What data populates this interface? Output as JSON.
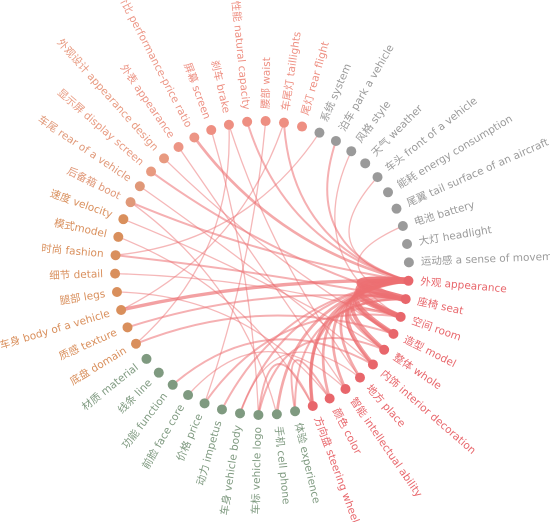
{
  "chart_data": {
    "type": "network",
    "nodes": [
      {
        "label": "外观 appearance",
        "color": "#e8666b"
      },
      {
        "label": "座椅 seat",
        "color": "#e8666b"
      },
      {
        "label": "空间 room",
        "color": "#e8666b"
      },
      {
        "label": "造型 model",
        "color": "#e8666b"
      },
      {
        "label": "整体 whole",
        "color": "#e8666b"
      },
      {
        "label": "内饰 interior decoration",
        "color": "#e8666b"
      },
      {
        "label": "地方 place",
        "color": "#e8666b"
      },
      {
        "label": "智能 intellectual ability",
        "color": "#e8666b"
      },
      {
        "label": "颜色 color",
        "color": "#e8666b"
      },
      {
        "label": "方向盘 steering wheel",
        "color": "#e8666b"
      },
      {
        "label": "体验 experience",
        "color": "#7f9a80"
      },
      {
        "label": "手机 cell phone",
        "color": "#7f9a80"
      },
      {
        "label": "车标 vehicle logo",
        "color": "#7f9a80"
      },
      {
        "label": "车身 vehicle body",
        "color": "#7f9a80"
      },
      {
        "label": "动力 impetus",
        "color": "#7f9a80"
      },
      {
        "label": "价格 price",
        "color": "#7f9a80"
      },
      {
        "label": "前脸 face core",
        "color": "#7f9a80"
      },
      {
        "label": "功能 function",
        "color": "#7f9a80"
      },
      {
        "label": "线条 line",
        "color": "#7f9a80"
      },
      {
        "label": "材质 material",
        "color": "#7f9a80"
      },
      {
        "label": "底盘 domain",
        "color": "#d98f5c"
      },
      {
        "label": "质感 texture",
        "color": "#d98f5c"
      },
      {
        "label": "车身 body of a vehicle",
        "color": "#d98f5c"
      },
      {
        "label": "腿部 legs",
        "color": "#d98f5c"
      },
      {
        "label": "细节 detail",
        "color": "#d98f5c"
      },
      {
        "label": "时尚 fashion",
        "color": "#d98f5c"
      },
      {
        "label": "模式model",
        "color": "#d98f5c"
      },
      {
        "label": "速度 velocity",
        "color": "#d98f5c"
      },
      {
        "label": "后备箱 boot",
        "color": "#e09878"
      },
      {
        "label": "车尾 rear of a vehicle",
        "color": "#e09878"
      },
      {
        "label": "显示屏 display screen",
        "color": "#e89a80"
      },
      {
        "label": "外观设计 appearance design",
        "color": "#e89a80"
      },
      {
        "label": "外表 appearance",
        "color": "#ec9585"
      },
      {
        "label": "性价比 performance-price ratio",
        "color": "#ec9585"
      },
      {
        "label": "屏幕 screen",
        "color": "#ee8f82"
      },
      {
        "label": "刹车 brake",
        "color": "#ee8f82"
      },
      {
        "label": "性能 natural capacity",
        "color": "#ee8f82"
      },
      {
        "label": "腰部 waist",
        "color": "#ee8f82"
      },
      {
        "label": "车尾灯 taillights",
        "color": "#ee8f82"
      },
      {
        "label": "尾灯 rear flight",
        "color": "#ee8f82"
      },
      {
        "label": "系统 system",
        "color": "#9a9a9a"
      },
      {
        "label": "泊车 park a vehicle",
        "color": "#9a9a9a"
      },
      {
        "label": "风格 style",
        "color": "#9a9a9a"
      },
      {
        "label": "天气 weather",
        "color": "#9a9a9a"
      },
      {
        "label": "车头 front of a vehicle",
        "color": "#9a9a9a"
      },
      {
        "label": "能耗 energy consumption",
        "color": "#9a9a9a"
      },
      {
        "label": "尾翼 tail surface of an aircraft",
        "color": "#9a9a9a"
      },
      {
        "label": "电池 battery",
        "color": "#9a9a9a"
      },
      {
        "label": "大灯 headlight",
        "color": "#9a9a9a"
      },
      {
        "label": "运动感 a sense of movemen",
        "color": "#9a9a9a"
      }
    ],
    "edges": [
      [
        0,
        1,
        9
      ],
      [
        0,
        2,
        7
      ],
      [
        0,
        3,
        6
      ],
      [
        0,
        4,
        5
      ],
      [
        1,
        2,
        6
      ],
      [
        1,
        3,
        4
      ],
      [
        0,
        5,
        5
      ],
      [
        2,
        4,
        3
      ],
      [
        0,
        9,
        4
      ],
      [
        1,
        9,
        3
      ],
      [
        0,
        11,
        3
      ],
      [
        0,
        14,
        2
      ],
      [
        0,
        22,
        4
      ],
      [
        0,
        28,
        2
      ],
      [
        0,
        33,
        3
      ],
      [
        0,
        36,
        2
      ],
      [
        0,
        38,
        2
      ],
      [
        1,
        21,
        2
      ],
      [
        1,
        25,
        2
      ],
      [
        1,
        30,
        2
      ],
      [
        2,
        15,
        2
      ],
      [
        2,
        24,
        1
      ],
      [
        3,
        20,
        2
      ],
      [
        3,
        31,
        1
      ],
      [
        4,
        12,
        2
      ],
      [
        4,
        27,
        1
      ],
      [
        5,
        17,
        2
      ],
      [
        5,
        29,
        1
      ],
      [
        6,
        13,
        1
      ],
      [
        6,
        35,
        1
      ],
      [
        7,
        16,
        1
      ],
      [
        7,
        32,
        1
      ],
      [
        8,
        10,
        2
      ],
      [
        8,
        23,
        1
      ],
      [
        9,
        12,
        2
      ],
      [
        9,
        26,
        1
      ],
      [
        0,
        41,
        2
      ],
      [
        0,
        44,
        1
      ],
      [
        1,
        47,
        1
      ],
      [
        2,
        42,
        1
      ],
      [
        0,
        13,
        2
      ],
      [
        1,
        10,
        2
      ],
      [
        0,
        8,
        3
      ],
      [
        0,
        7,
        3
      ],
      [
        0,
        6,
        3
      ],
      [
        1,
        5,
        2
      ],
      [
        20,
        35,
        1
      ],
      [
        22,
        38,
        1
      ],
      [
        25,
        40,
        1
      ],
      [
        12,
        34,
        1
      ],
      [
        11,
        28,
        1
      ],
      [
        15,
        37,
        1
      ]
    ],
    "edge_color": "#ec6f72"
  }
}
